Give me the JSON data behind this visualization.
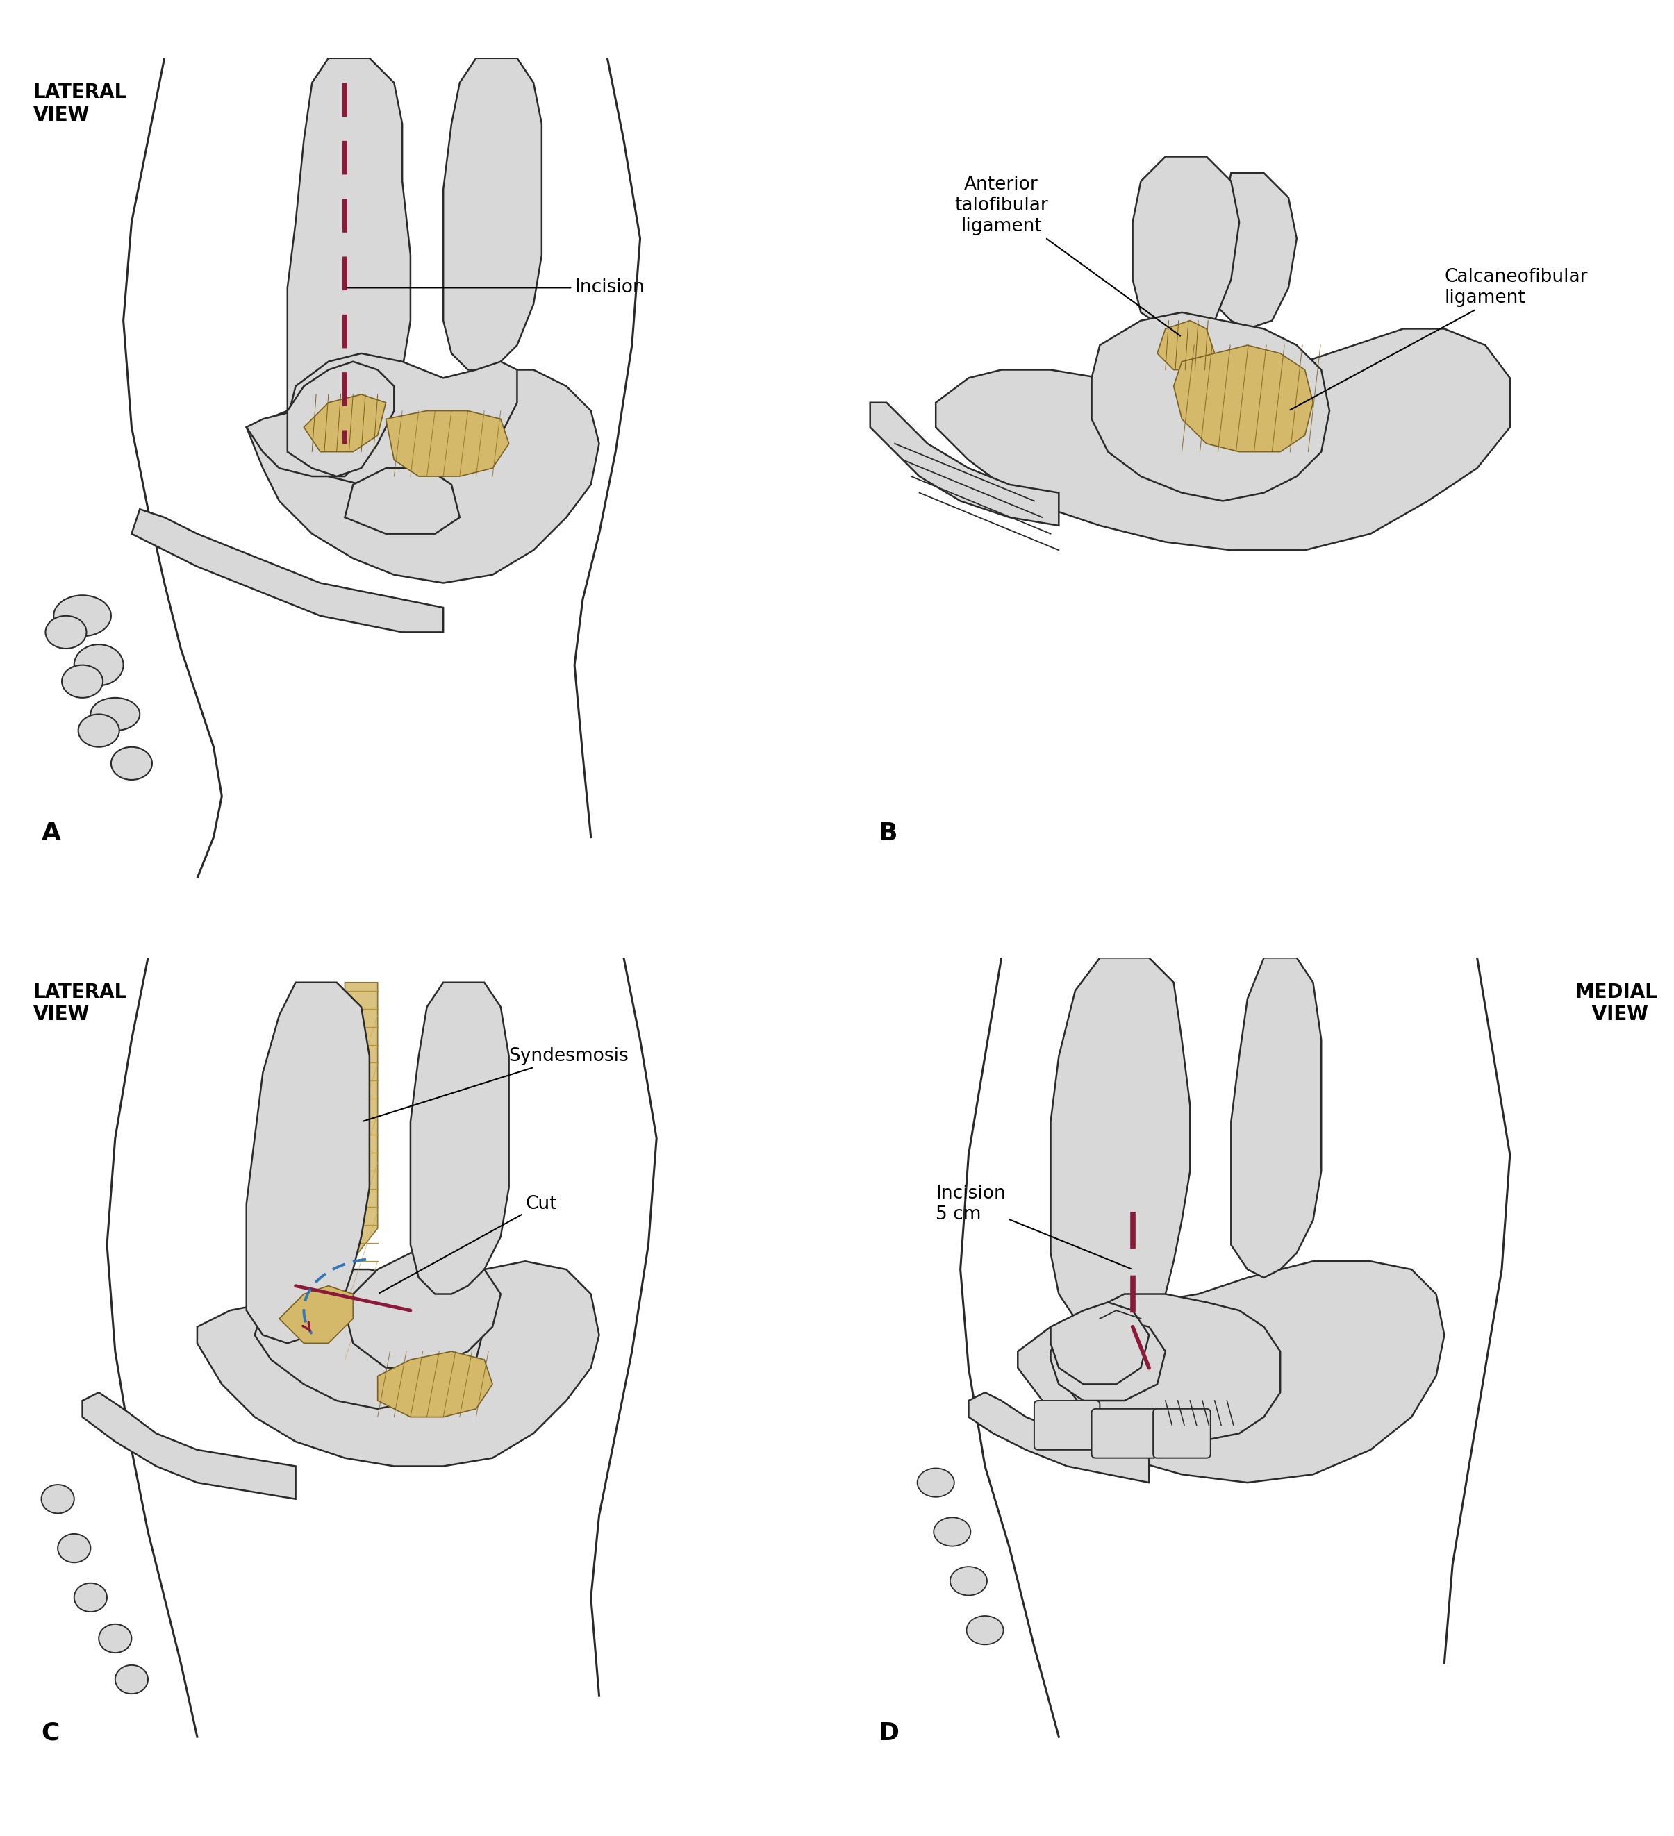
{
  "background_color": "#ffffff",
  "bone_fill": "#d8d8d8",
  "bone_fill_light": "#ececec",
  "bone_stroke": "#2a2a2a",
  "ligament_fill": "#d4b96a",
  "ligament_stroke": "#7a6020",
  "incision_color": "#8b1a3a",
  "blue_dashed_color": "#3377bb",
  "syndesmosis_fill": "#d4b96a",
  "skin_stroke": "#2a2a2a",
  "panel_labels": [
    "A",
    "B",
    "C",
    "D"
  ],
  "panel_A_label": "LATERAL\nVIEW",
  "panel_C_label": "LATERAL\nVIEW",
  "panel_D_label": "MEDIAL\n VIEW",
  "annotation_incision_A": "Incision",
  "annotation_atfl": "Anterior\ntalofibular\nligament",
  "annotation_cfl": "Calcaneofibular\nligament",
  "annotation_syndesmosis": "Syndesmosis",
  "annotation_cut": "Cut",
  "annotation_incision_D": "Incision\n5 cm",
  "label_fontsize": 26,
  "annotation_fontsize": 19,
  "view_label_fontsize": 20
}
